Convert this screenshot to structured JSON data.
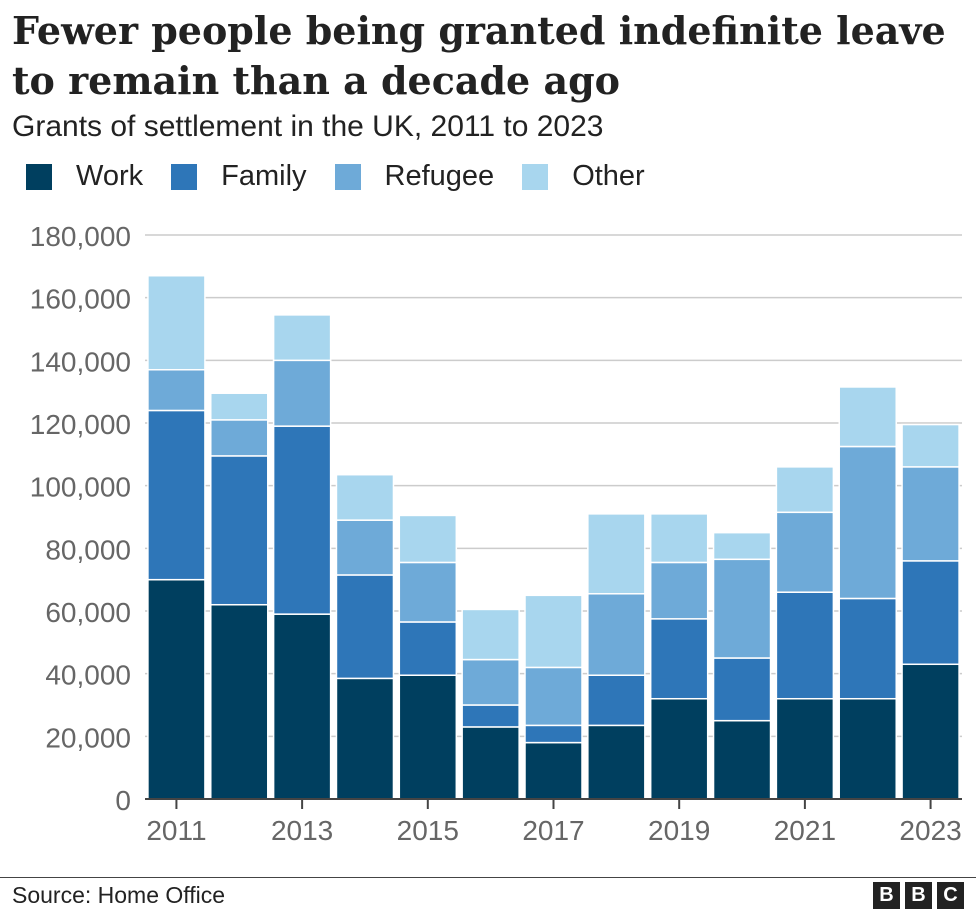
{
  "header": {
    "title": "Fewer people being granted indefinite leave to remain than a decade ago",
    "subtitle": "Grants of settlement in the UK, 2011 to 2023"
  },
  "footer": {
    "source": "Source: Home Office",
    "logo_letters": [
      "B",
      "B",
      "C"
    ]
  },
  "colors": {
    "Work": "#003f5f",
    "Family": "#2e76b8",
    "Refugee": "#6eaad8",
    "Other": "#a8d6ee",
    "grid": "#cccccc",
    "axis": "#444444",
    "tick_text": "#666666"
  },
  "chart_data": {
    "type": "bar",
    "stacked": true,
    "categories": [
      "2011",
      "2012",
      "2013",
      "2014",
      "2015",
      "2016",
      "2017",
      "2018",
      "2019",
      "2020",
      "2021",
      "2022",
      "2023"
    ],
    "x_tick_labels": [
      "2011",
      "2013",
      "2015",
      "2017",
      "2019",
      "2021",
      "2023"
    ],
    "series": [
      {
        "name": "Work",
        "values": [
          70000,
          62000,
          59000,
          38500,
          39500,
          23000,
          18000,
          23500,
          32000,
          25000,
          32000,
          32000,
          43000
        ]
      },
      {
        "name": "Family",
        "values": [
          54000,
          47500,
          60000,
          33000,
          17000,
          7000,
          5500,
          16000,
          25500,
          20000,
          34000,
          32000,
          33000
        ]
      },
      {
        "name": "Refugee",
        "values": [
          13000,
          11500,
          21000,
          17500,
          19000,
          14500,
          18500,
          26000,
          18000,
          31500,
          25500,
          48500,
          30000
        ]
      },
      {
        "name": "Other",
        "values": [
          30000,
          8500,
          14500,
          14500,
          15000,
          16000,
          23000,
          25500,
          15500,
          8500,
          14500,
          19000,
          13500
        ]
      }
    ],
    "ylim": [
      0,
      180000
    ],
    "y_ticks": [
      0,
      20000,
      40000,
      60000,
      80000,
      100000,
      120000,
      140000,
      160000,
      180000
    ],
    "y_tick_labels": [
      "0",
      "20,000",
      "40,000",
      "60,000",
      "80,000",
      "100,000",
      "120,000",
      "140,000",
      "160,000",
      "180,000"
    ],
    "grid": true,
    "legend_position": "top-left"
  }
}
